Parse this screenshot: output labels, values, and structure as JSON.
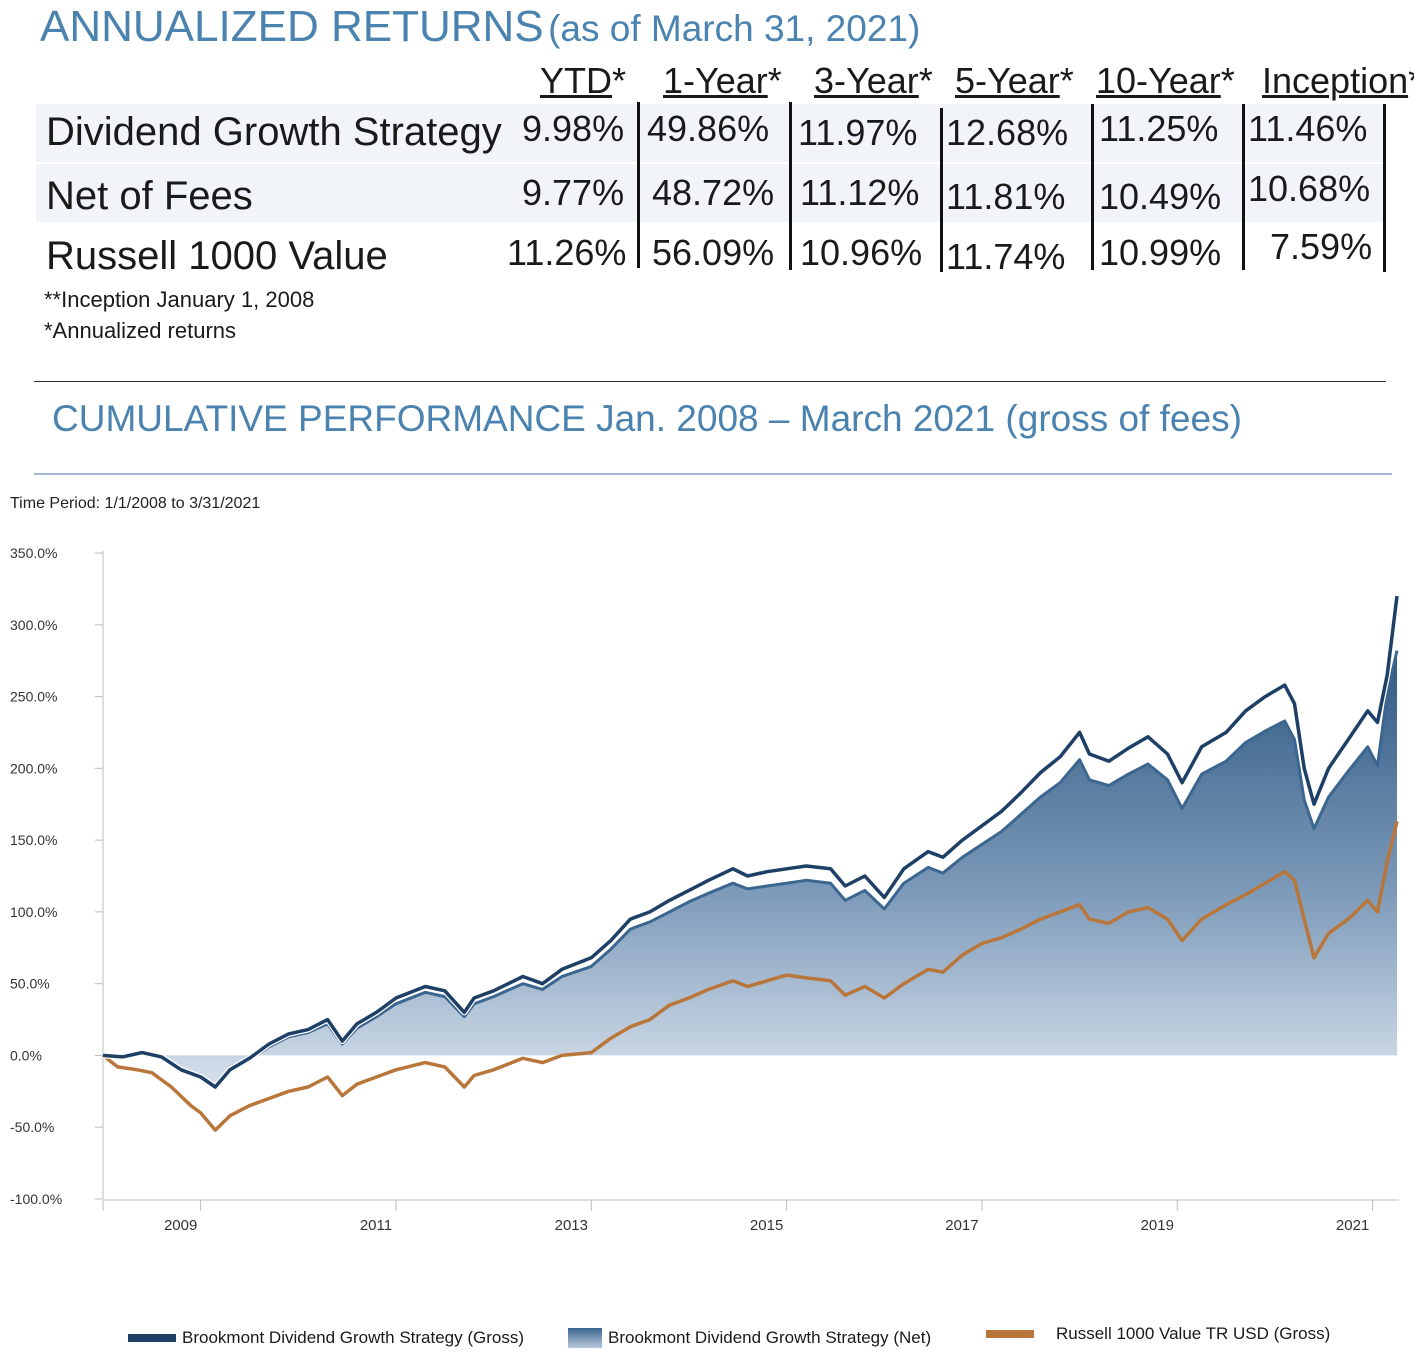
{
  "returns": {
    "title_main": "ANNUALIZED RETURNS",
    "title_sub": "(as of March 31, 2021)",
    "columns": [
      {
        "label": "YTD",
        "suffix": "*"
      },
      {
        "label": "1-Year",
        "suffix": "*"
      },
      {
        "label": "3-Year",
        "suffix": "*"
      },
      {
        "label": "5-Year",
        "suffix": "*"
      },
      {
        "label": "10-Year",
        "suffix": "*"
      },
      {
        "label": "Inception",
        "suffix": "**"
      }
    ],
    "rows": [
      {
        "label": "Dividend Growth Strategy",
        "values": [
          "9.98%",
          "49.86%",
          "11.97%",
          "12.68%",
          "11.25%",
          "11.46%"
        ]
      },
      {
        "label": "Net of Fees",
        "values": [
          "9.77%",
          "48.72%",
          "11.12%",
          "11.81%",
          "10.49%",
          "10.68%"
        ]
      },
      {
        "label": "Russell 1000 Value",
        "values": [
          "11.26%",
          "56.09%",
          "10.96%",
          "11.74%",
          "10.99%",
          "7.59%"
        ]
      }
    ],
    "notes": [
      "**Inception January 1, 2008",
      "*Annualized returns"
    ]
  },
  "performance": {
    "title": "CUMULATIVE PERFORMANCE Jan. 2008 – March 2021 (gross of fees)"
  },
  "chart_data": {
    "type": "area",
    "title": "CUMULATIVE PERFORMANCE Jan. 2008 – March 2021 (gross of fees)",
    "subtitle": "Time Period: 1/1/2008 to 3/31/2021",
    "xlabel": "",
    "ylabel": "",
    "x_ticks": [
      "2009",
      "2011",
      "2013",
      "2015",
      "2017",
      "2019",
      "2021"
    ],
    "x_tick_values": [
      2009,
      2011,
      2013,
      2015,
      2017,
      2019,
      2021
    ],
    "xlim": [
      2008.0,
      2021.25
    ],
    "y_ticks": [
      "350.0%",
      "300.0%",
      "250.0%",
      "200.0%",
      "150.0%",
      "100.0%",
      "50.0%",
      "0.0%",
      "-50.0%",
      "-100.0%"
    ],
    "y_tick_values": [
      350,
      300,
      250,
      200,
      150,
      100,
      50,
      0,
      -50,
      -100
    ],
    "ylim": [
      -100,
      350
    ],
    "legend_position": "bottom",
    "series": [
      {
        "name": "Brookmont Dividend Growth Strategy (Gross)",
        "style": "line",
        "color": "#1e3f66",
        "points": [
          [
            2008.0,
            0
          ],
          [
            2008.2,
            -1
          ],
          [
            2008.4,
            2
          ],
          [
            2008.6,
            -1
          ],
          [
            2008.8,
            -10
          ],
          [
            2009.0,
            -15
          ],
          [
            2009.15,
            -22
          ],
          [
            2009.3,
            -10
          ],
          [
            2009.5,
            -2
          ],
          [
            2009.7,
            8
          ],
          [
            2009.9,
            15
          ],
          [
            2010.1,
            18
          ],
          [
            2010.3,
            25
          ],
          [
            2010.45,
            10
          ],
          [
            2010.6,
            22
          ],
          [
            2010.8,
            30
          ],
          [
            2011.0,
            40
          ],
          [
            2011.3,
            48
          ],
          [
            2011.5,
            45
          ],
          [
            2011.7,
            30
          ],
          [
            2011.8,
            40
          ],
          [
            2012.0,
            45
          ],
          [
            2012.3,
            55
          ],
          [
            2012.5,
            50
          ],
          [
            2012.7,
            60
          ],
          [
            2013.0,
            68
          ],
          [
            2013.2,
            80
          ],
          [
            2013.4,
            95
          ],
          [
            2013.6,
            100
          ],
          [
            2013.8,
            108
          ],
          [
            2014.0,
            115
          ],
          [
            2014.2,
            122
          ],
          [
            2014.45,
            130
          ],
          [
            2014.6,
            125
          ],
          [
            2014.8,
            128
          ],
          [
            2015.0,
            130
          ],
          [
            2015.2,
            132
          ],
          [
            2015.45,
            130
          ],
          [
            2015.6,
            118
          ],
          [
            2015.8,
            125
          ],
          [
            2016.0,
            110
          ],
          [
            2016.2,
            130
          ],
          [
            2016.45,
            142
          ],
          [
            2016.6,
            138
          ],
          [
            2016.8,
            150
          ],
          [
            2017.0,
            160
          ],
          [
            2017.2,
            170
          ],
          [
            2017.4,
            183
          ],
          [
            2017.6,
            197
          ],
          [
            2017.8,
            208
          ],
          [
            2018.0,
            225
          ],
          [
            2018.1,
            210
          ],
          [
            2018.3,
            205
          ],
          [
            2018.5,
            214
          ],
          [
            2018.7,
            222
          ],
          [
            2018.9,
            210
          ],
          [
            2019.05,
            190
          ],
          [
            2019.25,
            215
          ],
          [
            2019.5,
            225
          ],
          [
            2019.7,
            240
          ],
          [
            2019.9,
            250
          ],
          [
            2020.1,
            258
          ],
          [
            2020.2,
            245
          ],
          [
            2020.3,
            200
          ],
          [
            2020.4,
            175
          ],
          [
            2020.55,
            200
          ],
          [
            2020.75,
            220
          ],
          [
            2020.95,
            240
          ],
          [
            2021.05,
            232
          ],
          [
            2021.15,
            265
          ],
          [
            2021.25,
            320
          ]
        ]
      },
      {
        "name": "Brookmont Dividend Growth Strategy (Net)",
        "style": "area",
        "color": "#3b6690",
        "points": [
          [
            2008.0,
            0
          ],
          [
            2008.2,
            -1
          ],
          [
            2008.4,
            1
          ],
          [
            2008.6,
            -2
          ],
          [
            2008.8,
            -11
          ],
          [
            2009.0,
            -16
          ],
          [
            2009.15,
            -23
          ],
          [
            2009.3,
            -11
          ],
          [
            2009.5,
            -3
          ],
          [
            2009.7,
            6
          ],
          [
            2009.9,
            13
          ],
          [
            2010.1,
            16
          ],
          [
            2010.3,
            22
          ],
          [
            2010.45,
            8
          ],
          [
            2010.6,
            19
          ],
          [
            2010.8,
            27
          ],
          [
            2011.0,
            36
          ],
          [
            2011.3,
            44
          ],
          [
            2011.5,
            41
          ],
          [
            2011.7,
            27
          ],
          [
            2011.8,
            36
          ],
          [
            2012.0,
            41
          ],
          [
            2012.3,
            50
          ],
          [
            2012.5,
            46
          ],
          [
            2012.7,
            55
          ],
          [
            2013.0,
            62
          ],
          [
            2013.2,
            74
          ],
          [
            2013.4,
            88
          ],
          [
            2013.6,
            93
          ],
          [
            2013.8,
            100
          ],
          [
            2014.0,
            107
          ],
          [
            2014.2,
            113
          ],
          [
            2014.45,
            120
          ],
          [
            2014.6,
            116
          ],
          [
            2014.8,
            118
          ],
          [
            2015.0,
            120
          ],
          [
            2015.2,
            122
          ],
          [
            2015.45,
            120
          ],
          [
            2015.6,
            108
          ],
          [
            2015.8,
            115
          ],
          [
            2016.0,
            102
          ],
          [
            2016.2,
            120
          ],
          [
            2016.45,
            131
          ],
          [
            2016.6,
            127
          ],
          [
            2016.8,
            138
          ],
          [
            2017.0,
            147
          ],
          [
            2017.2,
            156
          ],
          [
            2017.4,
            168
          ],
          [
            2017.6,
            180
          ],
          [
            2017.8,
            190
          ],
          [
            2018.0,
            206
          ],
          [
            2018.1,
            192
          ],
          [
            2018.3,
            188
          ],
          [
            2018.5,
            196
          ],
          [
            2018.7,
            203
          ],
          [
            2018.9,
            192
          ],
          [
            2019.05,
            172
          ],
          [
            2019.25,
            196
          ],
          [
            2019.5,
            205
          ],
          [
            2019.7,
            218
          ],
          [
            2019.9,
            226
          ],
          [
            2020.1,
            233
          ],
          [
            2020.2,
            220
          ],
          [
            2020.3,
            178
          ],
          [
            2020.4,
            158
          ],
          [
            2020.55,
            180
          ],
          [
            2020.75,
            198
          ],
          [
            2020.95,
            215
          ],
          [
            2021.05,
            202
          ],
          [
            2021.15,
            252
          ],
          [
            2021.25,
            282
          ]
        ]
      },
      {
        "name": "Russell 1000 Value TR USD (Gross)",
        "style": "line",
        "color": "#b8763a",
        "points": [
          [
            2008.0,
            0
          ],
          [
            2008.15,
            -8
          ],
          [
            2008.35,
            -10
          ],
          [
            2008.5,
            -12
          ],
          [
            2008.7,
            -22
          ],
          [
            2008.9,
            -35
          ],
          [
            2009.0,
            -40
          ],
          [
            2009.1,
            -48
          ],
          [
            2009.15,
            -52
          ],
          [
            2009.3,
            -42
          ],
          [
            2009.5,
            -35
          ],
          [
            2009.7,
            -30
          ],
          [
            2009.9,
            -25
          ],
          [
            2010.1,
            -22
          ],
          [
            2010.3,
            -15
          ],
          [
            2010.45,
            -28
          ],
          [
            2010.6,
            -20
          ],
          [
            2010.8,
            -15
          ],
          [
            2011.0,
            -10
          ],
          [
            2011.3,
            -5
          ],
          [
            2011.5,
            -8
          ],
          [
            2011.7,
            -22
          ],
          [
            2011.8,
            -14
          ],
          [
            2012.0,
            -10
          ],
          [
            2012.3,
            -2
          ],
          [
            2012.5,
            -5
          ],
          [
            2012.7,
            0
          ],
          [
            2013.0,
            2
          ],
          [
            2013.2,
            12
          ],
          [
            2013.4,
            20
          ],
          [
            2013.6,
            25
          ],
          [
            2013.8,
            35
          ],
          [
            2014.0,
            40
          ],
          [
            2014.2,
            46
          ],
          [
            2014.45,
            52
          ],
          [
            2014.6,
            48
          ],
          [
            2014.8,
            52
          ],
          [
            2015.0,
            56
          ],
          [
            2015.2,
            54
          ],
          [
            2015.45,
            52
          ],
          [
            2015.6,
            42
          ],
          [
            2015.8,
            48
          ],
          [
            2016.0,
            40
          ],
          [
            2016.2,
            50
          ],
          [
            2016.45,
            60
          ],
          [
            2016.6,
            58
          ],
          [
            2016.8,
            70
          ],
          [
            2017.0,
            78
          ],
          [
            2017.2,
            82
          ],
          [
            2017.4,
            88
          ],
          [
            2017.6,
            95
          ],
          [
            2017.8,
            100
          ],
          [
            2018.0,
            105
          ],
          [
            2018.1,
            95
          ],
          [
            2018.3,
            92
          ],
          [
            2018.5,
            100
          ],
          [
            2018.7,
            103
          ],
          [
            2018.9,
            95
          ],
          [
            2019.05,
            80
          ],
          [
            2019.25,
            95
          ],
          [
            2019.5,
            105
          ],
          [
            2019.7,
            112
          ],
          [
            2019.9,
            120
          ],
          [
            2020.1,
            128
          ],
          [
            2020.2,
            122
          ],
          [
            2020.3,
            95
          ],
          [
            2020.4,
            68
          ],
          [
            2020.55,
            85
          ],
          [
            2020.75,
            95
          ],
          [
            2020.95,
            108
          ],
          [
            2021.05,
            100
          ],
          [
            2021.15,
            135
          ],
          [
            2021.25,
            163
          ]
        ]
      }
    ]
  }
}
